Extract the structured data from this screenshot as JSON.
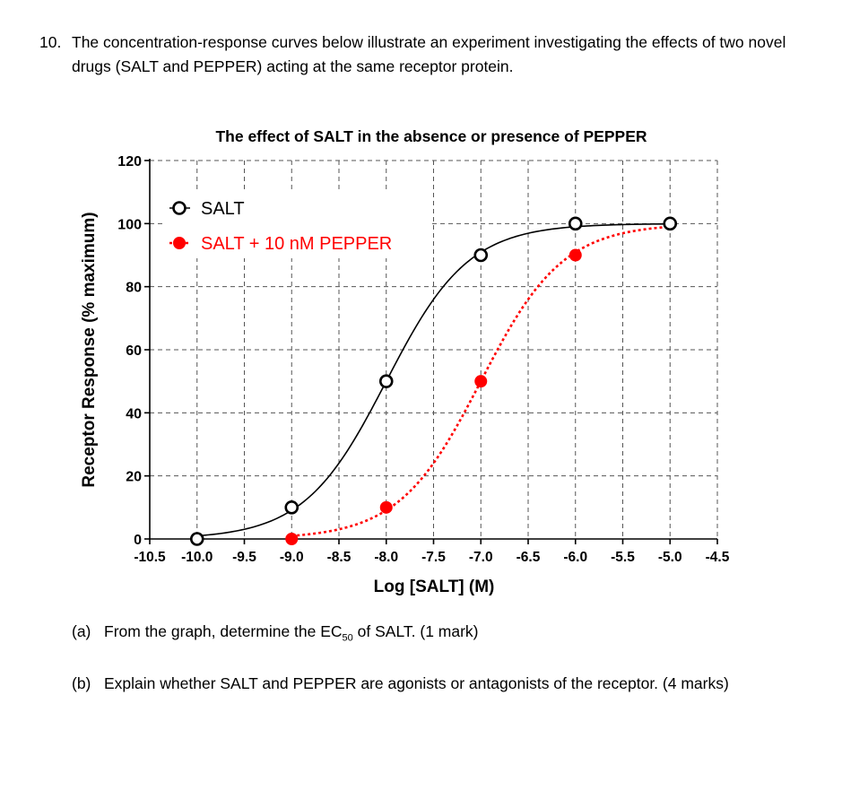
{
  "question": {
    "number": "10.",
    "text": "The concentration-response curves below illustrate an experiment investigating the effects of two novel drugs (SALT and PEPPER) acting at the same receptor protein."
  },
  "parts": {
    "a": {
      "label": "(a)",
      "text_before": "From the graph, determine the EC",
      "subscript": "50",
      "text_after": " of SALT. (1 mark)"
    },
    "b": {
      "label": "(b)",
      "text": "Explain whether SALT and PEPPER are agonists or antagonists of the receptor. (4 marks)"
    }
  },
  "chart_data": {
    "type": "scatter",
    "title": "The effect of SALT in the absence or presence of PEPPER",
    "xlabel": "Log [SALT] (M)",
    "ylabel": "Receptor Response (% maximum)",
    "xlim": [
      -10.5,
      -4.5
    ],
    "ylim": [
      0,
      120
    ],
    "xticks": [
      "-10.5",
      "-10.0",
      "-9.5",
      "-9.0",
      "-8.5",
      "-8.0",
      "-7.5",
      "-7.0",
      "-6.5",
      "-6.0",
      "-5.5",
      "-5.0",
      "-4.5"
    ],
    "yticks": [
      "0",
      "20",
      "40",
      "60",
      "80",
      "100",
      "120"
    ],
    "grid": true,
    "legend_position": "top-left",
    "series": [
      {
        "name": "SALT",
        "color": "#000000",
        "marker": "open-circle",
        "line": "solid",
        "x": [
          -10.0,
          -9.0,
          -8.0,
          -7.0,
          -6.0,
          -5.0
        ],
        "y": [
          0,
          10,
          50,
          90,
          100,
          100
        ],
        "fit_ec50_log": -8.0,
        "fit_hill": 1.0
      },
      {
        "name": "SALT + 10 nM PEPPER",
        "color": "#ff0000",
        "marker": "filled-circle",
        "line": "dotted",
        "x": [
          -9.0,
          -8.0,
          -7.0,
          -6.0,
          -5.0
        ],
        "y": [
          0,
          10,
          50,
          90,
          100
        ],
        "fit_ec50_log": -7.0,
        "fit_hill": 1.0
      }
    ]
  }
}
